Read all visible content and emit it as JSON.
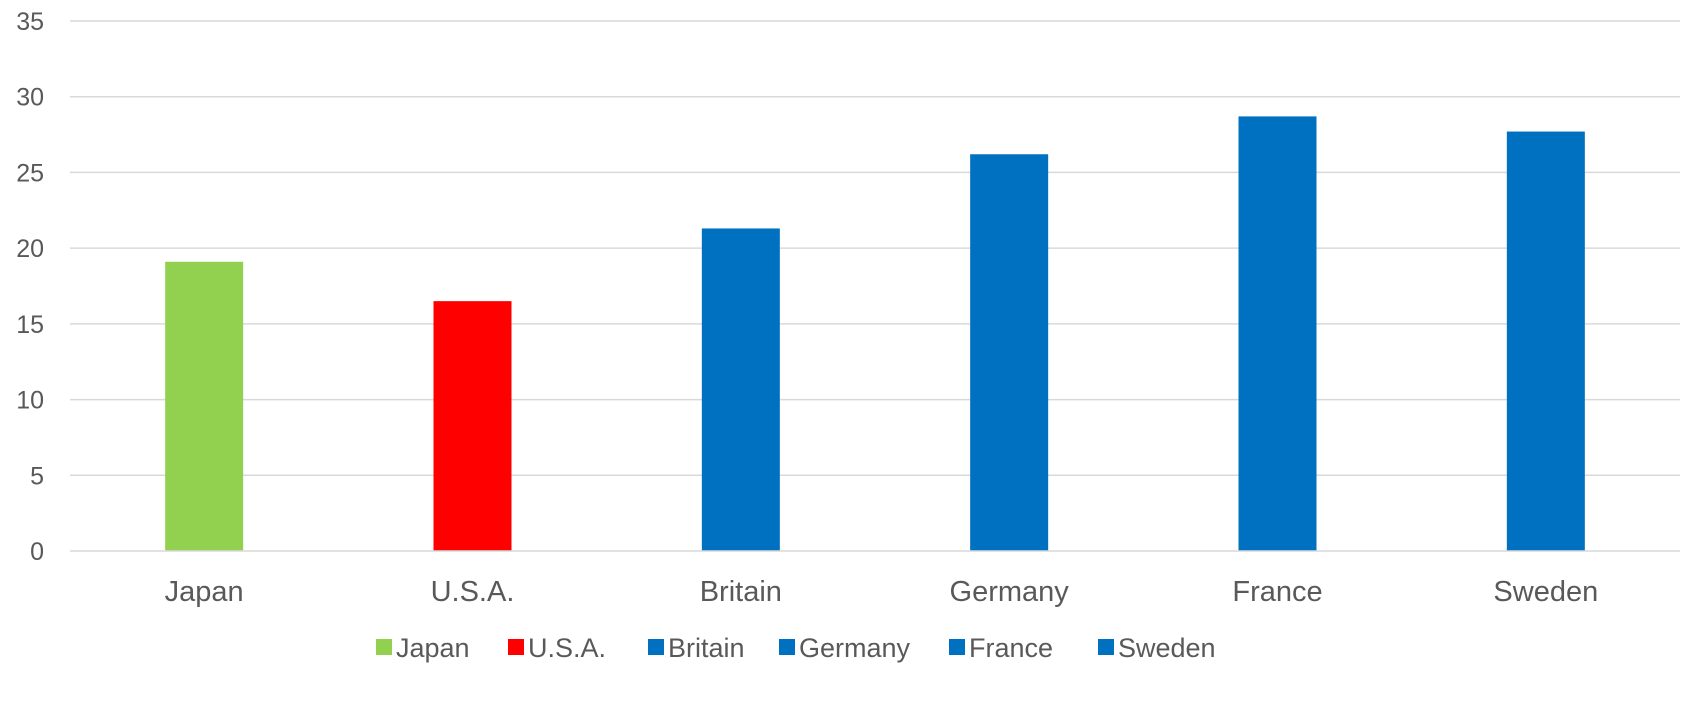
{
  "chart_data": {
    "type": "bar",
    "title": "",
    "xlabel": "",
    "ylabel": "",
    "categories": [
      "Japan",
      "U.S.A.",
      "Britain",
      "Germany",
      "France",
      "Sweden"
    ],
    "values": [
      19.1,
      16.5,
      21.3,
      26.2,
      28.7,
      27.7
    ],
    "bar_colors": [
      "#92d050",
      "#ff0000",
      "#0070c0",
      "#0070c0",
      "#0070c0",
      "#0070c0"
    ],
    "ylim": [
      0,
      35
    ],
    "yticks": [
      "0",
      "5",
      "10",
      "15",
      "20",
      "25",
      "30",
      "35"
    ],
    "grid": true,
    "legend_position": "bottom",
    "legend": [
      {
        "label": "Japan",
        "color": "#92d050"
      },
      {
        "label": "U.S.A.",
        "color": "#ff0000"
      },
      {
        "label": "Britain",
        "color": "#0070c0"
      },
      {
        "label": "Germany",
        "color": "#0070c0"
      },
      {
        "label": "France",
        "color": "#0070c0"
      },
      {
        "label": "Sweden",
        "color": "#0070c0"
      }
    ]
  }
}
